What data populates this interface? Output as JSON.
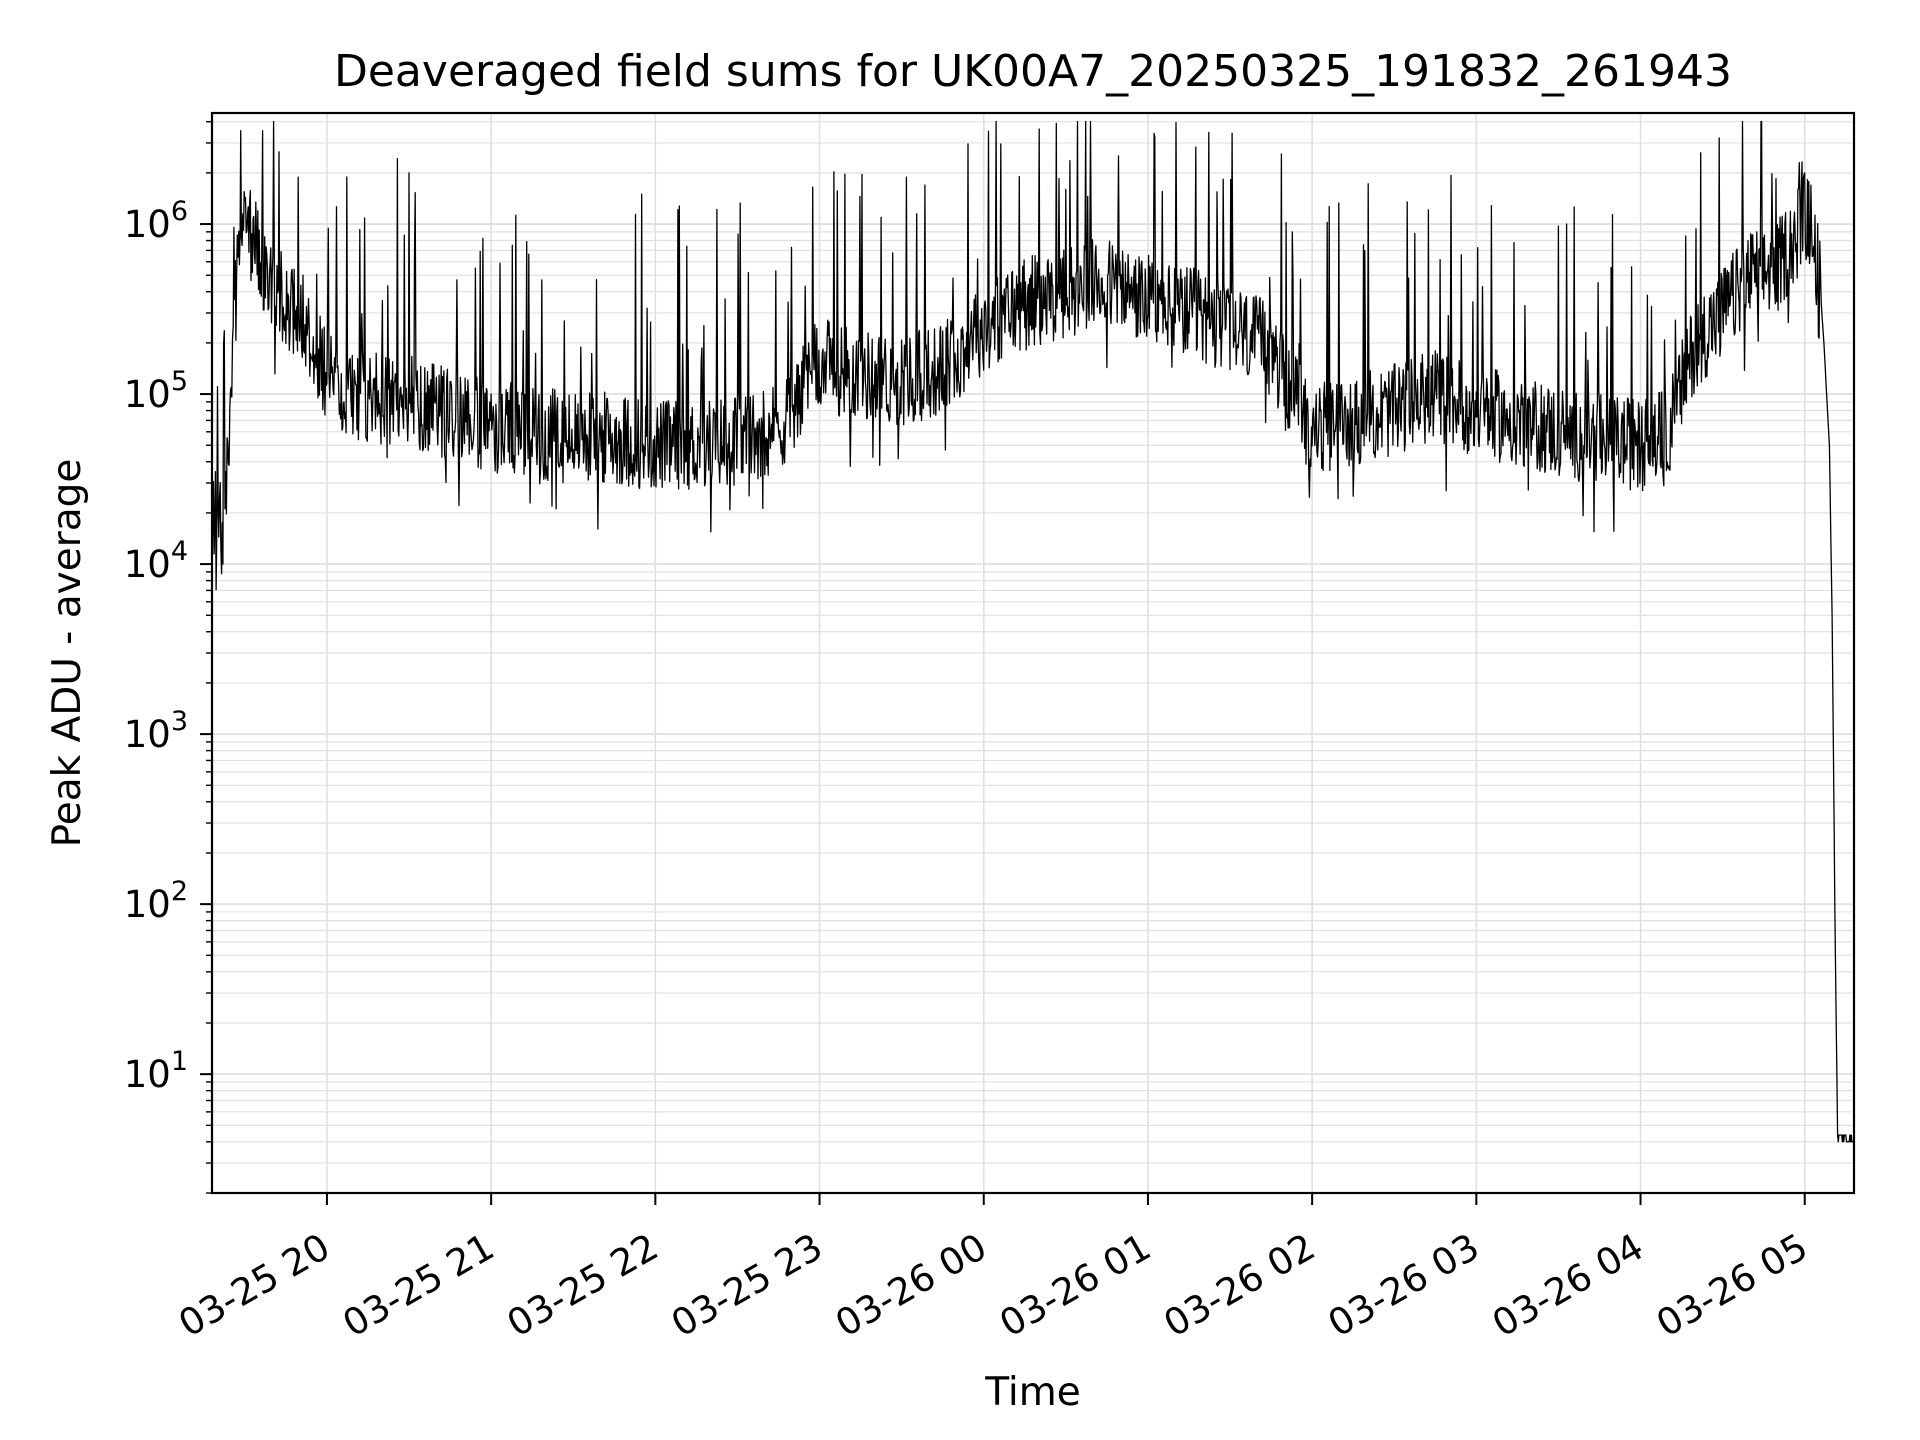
{
  "chart_data": {
    "type": "line",
    "title": "Deaveraged field sums for UK00A7_20250325_191832_261943",
    "xlabel": "Time",
    "ylabel": "Peak ADU - average",
    "x_scale": "time",
    "y_scale": "log",
    "xlim": [
      "2025-03-25 19:18",
      "2025-03-26 05:18"
    ],
    "ylim": [
      2,
      4500000
    ],
    "grid": true,
    "legend": "none",
    "line_color": "#000000",
    "grid_color": "#e0e0e0",
    "x_ticks": [
      {
        "value": "2025-03-25 20:00",
        "label": "03-25 20"
      },
      {
        "value": "2025-03-25 21:00",
        "label": "03-25 21"
      },
      {
        "value": "2025-03-25 22:00",
        "label": "03-25 22"
      },
      {
        "value": "2025-03-25 23:00",
        "label": "03-25 23"
      },
      {
        "value": "2025-03-26 00:00",
        "label": "03-26 00"
      },
      {
        "value": "2025-03-26 01:00",
        "label": "03-26 01"
      },
      {
        "value": "2025-03-26 02:00",
        "label": "03-26 02"
      },
      {
        "value": "2025-03-26 03:00",
        "label": "03-26 03"
      },
      {
        "value": "2025-03-26 04:00",
        "label": "03-26 04"
      },
      {
        "value": "2025-03-26 05:00",
        "label": "03-26 05"
      }
    ],
    "y_ticks": [
      {
        "value": 10,
        "base": "10",
        "exp": "1"
      },
      {
        "value": 100,
        "base": "10",
        "exp": "2"
      },
      {
        "value": 1000,
        "base": "10",
        "exp": "3"
      },
      {
        "value": 10000,
        "base": "10",
        "exp": "4"
      },
      {
        "value": 100000,
        "base": "10",
        "exp": "5"
      },
      {
        "value": 1000000,
        "base": "10",
        "exp": "6"
      }
    ],
    "series": [
      {
        "x": [
          "2025-03-25 19:18",
          "2025-03-25 19:20",
          "2025-03-25 19:22",
          "2025-03-25 19:25",
          "2025-03-25 19:28",
          "2025-03-25 19:30",
          "2025-03-25 19:33",
          "2025-03-25 19:36",
          "2025-03-25 19:40",
          "2025-03-25 19:45",
          "2025-03-25 19:50",
          "2025-03-25 19:55",
          "2025-03-25 20:00",
          "2025-03-25 20:10",
          "2025-03-25 20:20",
          "2025-03-25 20:30",
          "2025-03-25 20:40",
          "2025-03-25 20:50",
          "2025-03-25 21:00",
          "2025-03-25 21:15",
          "2025-03-25 21:30",
          "2025-03-25 21:45",
          "2025-03-25 22:00",
          "2025-03-25 22:15",
          "2025-03-25 22:30",
          "2025-03-25 22:45",
          "2025-03-25 23:00",
          "2025-03-25 23:15",
          "2025-03-25 23:30",
          "2025-03-25 23:45",
          "2025-03-26 00:00",
          "2025-03-26 00:15",
          "2025-03-26 00:30",
          "2025-03-26 00:45",
          "2025-03-26 01:00",
          "2025-03-26 01:15",
          "2025-03-26 01:30",
          "2025-03-26 01:45",
          "2025-03-26 02:00",
          "2025-03-26 02:15",
          "2025-03-26 02:30",
          "2025-03-26 02:45",
          "2025-03-26 03:00",
          "2025-03-26 03:15",
          "2025-03-26 03:30",
          "2025-03-26 03:45",
          "2025-03-26 04:00",
          "2025-03-26 04:10",
          "2025-03-26 04:20",
          "2025-03-26 04:30",
          "2025-03-26 04:40",
          "2025-03-26 04:50",
          "2025-03-26 05:00",
          "2025-03-26 05:02",
          "2025-03-26 05:05",
          "2025-03-26 05:07",
          "2025-03-26 05:09",
          "2025-03-26 05:10",
          "2025-03-26 05:11",
          "2025-03-26 05:12",
          "2025-03-26 05:18"
        ],
        "y": [
          15000,
          22000,
          12000,
          120000,
          900000,
          1100000,
          800000,
          600000,
          450000,
          350000,
          300000,
          220000,
          120000,
          100000,
          95000,
          90000,
          80000,
          70000,
          65000,
          60000,
          55000,
          55000,
          50000,
          50000,
          55000,
          65000,
          150000,
          130000,
          120000,
          140000,
          250000,
          350000,
          400000,
          450000,
          350000,
          300000,
          250000,
          180000,
          60000,
          70000,
          80000,
          100000,
          80000,
          70000,
          60000,
          55000,
          50000,
          60000,
          200000,
          300000,
          500000,
          550000,
          1100000,
          1000000,
          600000,
          200000,
          50000,
          5000,
          100,
          4,
          4
        ],
        "spikes": [
          {
            "x": "2025-03-25 20:30",
            "y": 2000000
          },
          {
            "x": "2025-03-25 21:55",
            "y": 1500000
          },
          {
            "x": "2025-03-26 00:30",
            "y": 1600000
          },
          {
            "x": "2025-03-26 04:58",
            "y": 2300000
          },
          {
            "x": "2025-03-26 05:00",
            "y": 2000000
          }
        ]
      }
    ]
  }
}
